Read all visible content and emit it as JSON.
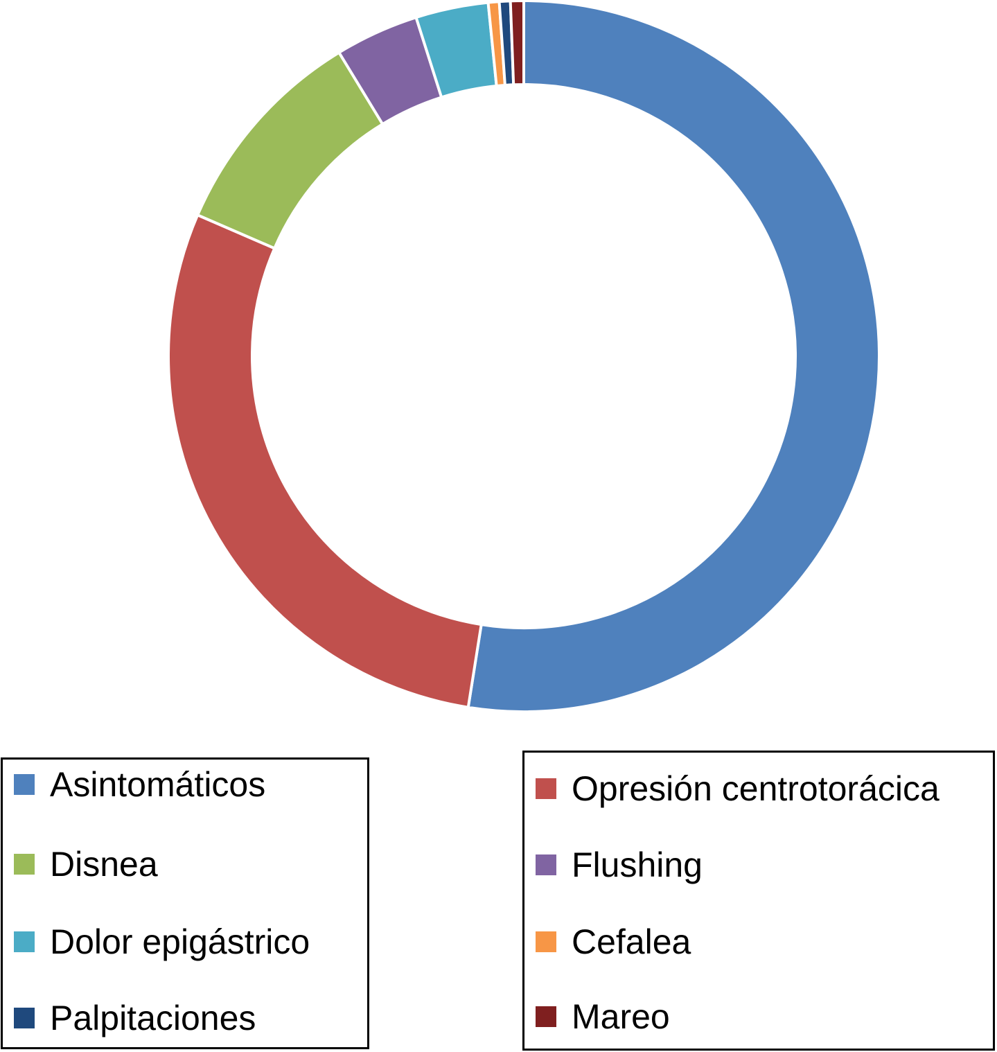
{
  "chart_data": {
    "type": "pie",
    "donut": true,
    "title": "",
    "categories": [
      "Asintomáticos",
      "Opresión centrotorácica",
      "Disnea",
      "Flushing",
      "Dolor epigástrico",
      "Cefalea",
      "Palpitaciones",
      "Mareo"
    ],
    "values": [
      52.5,
      29.0,
      9.8,
      3.8,
      3.3,
      0.5,
      0.5,
      0.6
    ],
    "unit": "%",
    "colors": [
      "#4f81bd",
      "#c0504d",
      "#9bbb59",
      "#8064a2",
      "#4bacc6",
      "#f79646",
      "#1f497d",
      "#7f1f1f"
    ],
    "start_angle_deg": 0,
    "direction": "clockwise",
    "legend_position": "bottom",
    "legend": {
      "left": [
        "Asintomáticos",
        "Disnea",
        "Dolor epigástrico",
        "Palpitaciones"
      ],
      "right": [
        "Opresión centrotorácica",
        "Flushing",
        "Cefalea",
        "Mareo"
      ]
    }
  }
}
